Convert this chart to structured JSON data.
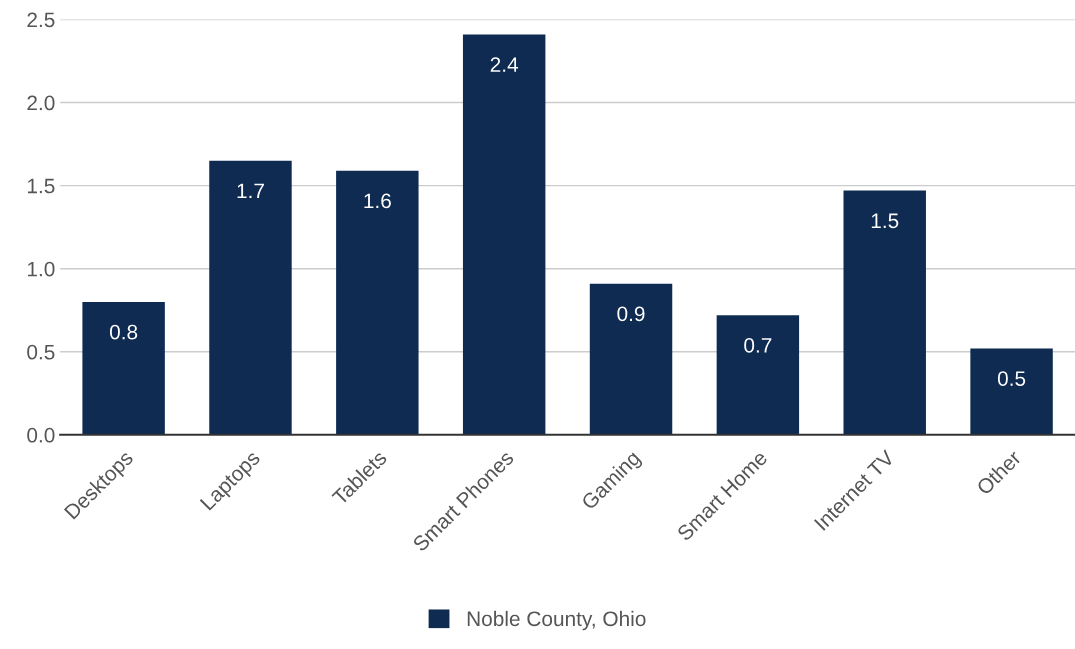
{
  "chart_data": {
    "type": "bar",
    "categories": [
      "Desktops",
      "Laptops",
      "Tablets",
      "Smart Phones",
      "Gaming",
      "Smart Home",
      "Internet TV",
      "Other"
    ],
    "series": [
      {
        "name": "Noble County, Ohio",
        "color": "#0f2b52",
        "values": [
          0.8,
          1.65,
          1.59,
          2.41,
          0.91,
          0.72,
          1.47,
          0.52
        ],
        "value_labels": [
          "0.8",
          "1.7",
          "1.6",
          "2.4",
          "0.9",
          "0.7",
          "1.5",
          "0.5"
        ]
      }
    ],
    "ylim": [
      0,
      2.5
    ],
    "yticks": [
      {
        "value": 0,
        "label": "0.0"
      },
      {
        "value": 0.5,
        "label": "0.5"
      },
      {
        "value": 1,
        "label": "1.0"
      },
      {
        "value": 1.5,
        "label": "1.5"
      },
      {
        "value": 2,
        "label": "2.0"
      },
      {
        "value": 2.5,
        "label": "2.5"
      }
    ],
    "grid": "y",
    "legend": "bottom"
  }
}
